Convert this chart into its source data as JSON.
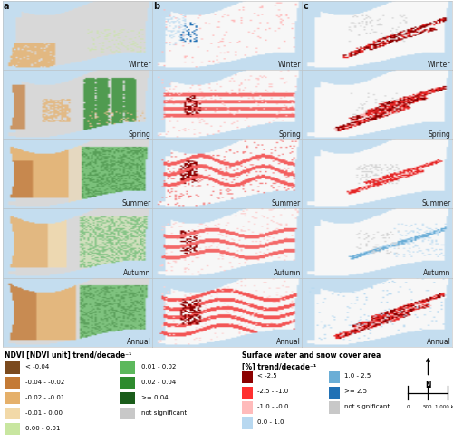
{
  "col_labels": [
    "a",
    "b",
    "c"
  ],
  "row_labels": [
    "Winter",
    "Spring",
    "Summer",
    "Autumn",
    "Annual"
  ],
  "ndvi_legend_title": "NDVI [NDVI unit] trend/decade⁻¹",
  "ndvi_left_items": [
    {
      "label": "< -0.04",
      "color": "#7B4A1E"
    },
    {
      "label": "-0.04 - -0.02",
      "color": "#C47A35"
    },
    {
      "label": "-0.02 - -0.01",
      "color": "#E5B06A"
    },
    {
      "label": "-0.01 - 0.00",
      "color": "#F2D9A8"
    },
    {
      "label": "0.00 - 0.01",
      "color": "#C8E6A0"
    }
  ],
  "ndvi_right_items": [
    {
      "label": "0.01 - 0.02",
      "color": "#5CB85C"
    },
    {
      "label": "0.02 - 0.04",
      "color": "#2E8B2E"
    },
    {
      "label": ">= 0.04",
      "color": "#1A5C1A"
    },
    {
      "label": "not significant",
      "color": "#C8C8C8"
    }
  ],
  "swa_legend_title": "Surface water and snow cover area",
  "swa_legend_subtitle": "[%] trend/decade⁻¹",
  "swa_left_items": [
    {
      "label": "< -2.5",
      "color": "#8B0000"
    },
    {
      "label": "-2.5 - -1.0",
      "color": "#FF3030"
    },
    {
      "label": "-1.0 - -0.0",
      "color": "#FFBBBB"
    },
    {
      "label": "0.0 - 1.0",
      "color": "#B8D8F0"
    }
  ],
  "swa_right_items": [
    {
      "label": "1.0 - 2.5",
      "color": "#6BAED6"
    },
    {
      "label": ">= 2.5",
      "color": "#2171B5"
    },
    {
      "label": "not significant",
      "color": "#C8C8C8"
    }
  ],
  "water_color": "#C5DFF0",
  "land_gray": "#D8D8D8",
  "land_white": "#F5F5F5",
  "river_color": "#88BBDD",
  "border_color": "#9EC8E0",
  "season_fontsize": 5.5,
  "col_label_fontsize": 7,
  "legend_title_fontsize": 5.5,
  "legend_fontsize": 5.0,
  "figure_bg": "#FFFFFF"
}
